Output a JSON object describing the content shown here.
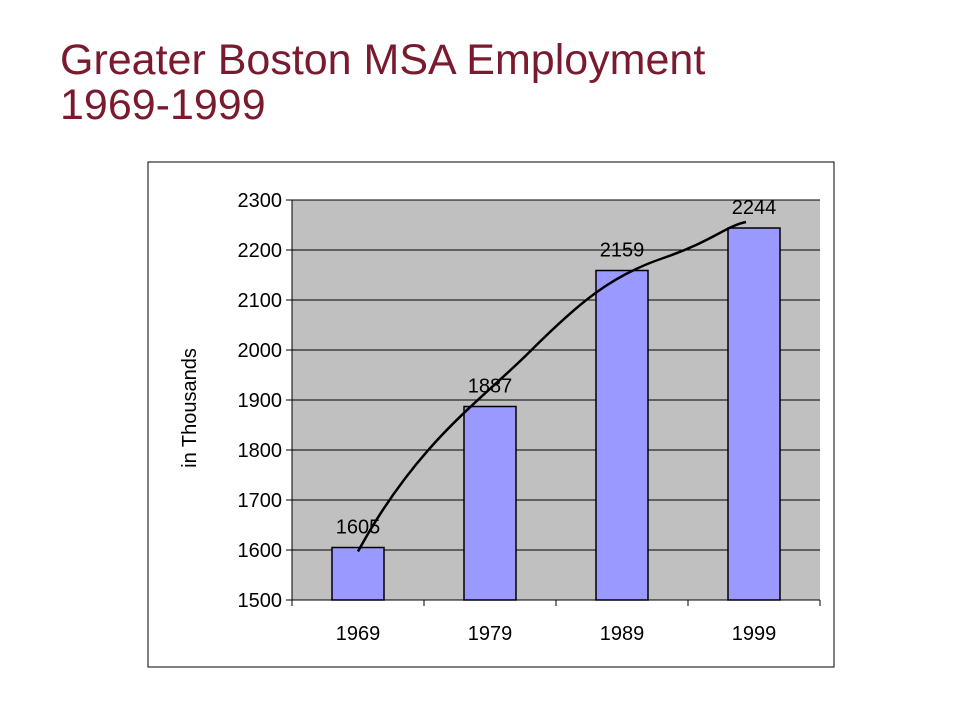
{
  "page": {
    "title_line1": "Greater Boston MSA Employment",
    "title_line2": "1969-1999"
  },
  "colors": {
    "title": "#7a1a2e",
    "plot_background": "#c0c0c0",
    "bar_fill": "#9999ff",
    "bar_stroke": "#000000",
    "trend_line": "#000000"
  },
  "chart_data": {
    "type": "bar",
    "title": "",
    "xlabel": "",
    "ylabel": "in Thousands",
    "categories": [
      "1969",
      "1979",
      "1989",
      "1999"
    ],
    "values": [
      1605,
      1887,
      2159,
      2244
    ],
    "data_labels": [
      "1605",
      "1887",
      "2159",
      "2244"
    ],
    "ylim": [
      1500,
      2300
    ],
    "yticks": [
      1500,
      1600,
      1700,
      1800,
      1900,
      2000,
      2100,
      2200,
      2300
    ],
    "grid": true,
    "legend": "none",
    "trendline": "curved line through bar tops"
  }
}
